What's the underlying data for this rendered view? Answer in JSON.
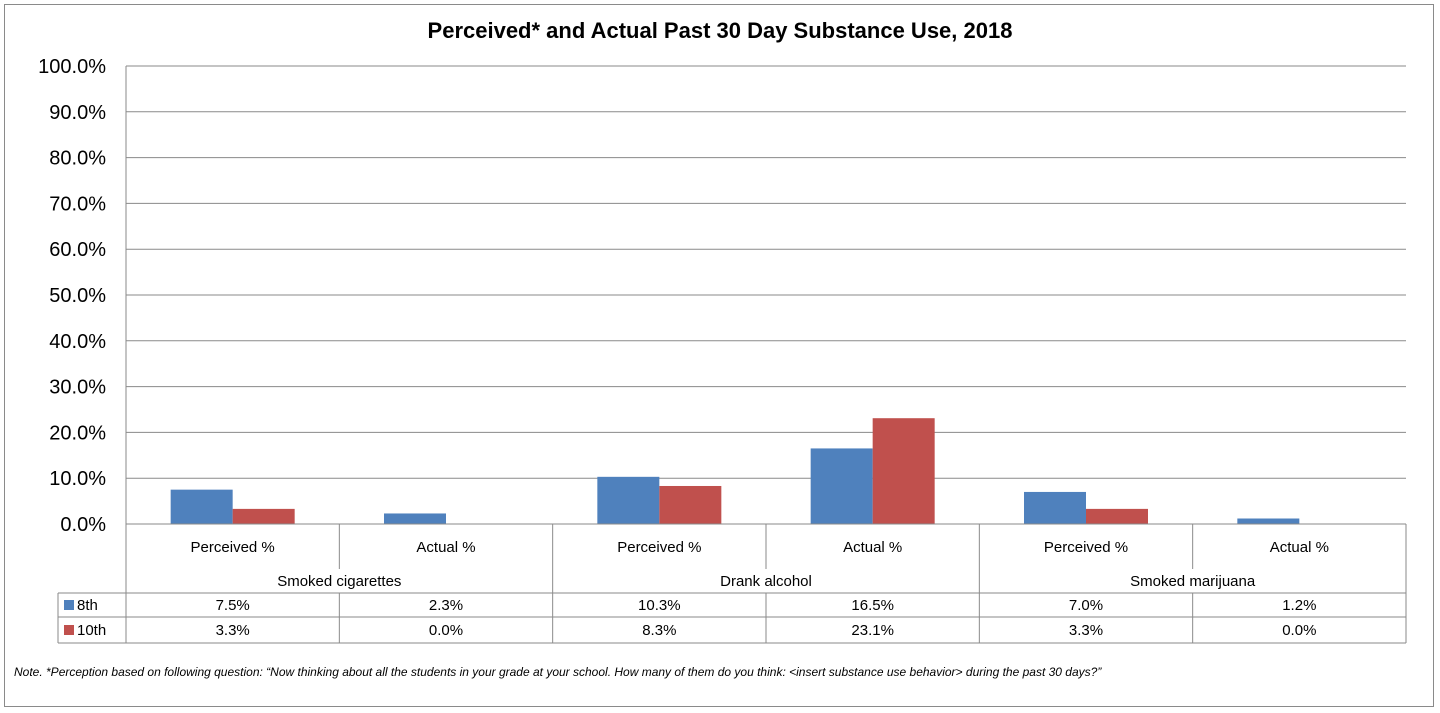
{
  "chart_data": {
    "type": "bar",
    "title": "Perceived* and Actual Past 30 Day Substance Use, 2018",
    "categories": [
      "Perceived %",
      "Actual %",
      "Perceived %",
      "Actual %",
      "Perceived %",
      "Actual %"
    ],
    "groups": [
      {
        "label": "Smoked cigarettes",
        "span": 2
      },
      {
        "label": "Drank alcohol",
        "span": 2
      },
      {
        "label": "Smoked marijuana",
        "span": 2
      }
    ],
    "series": [
      {
        "name": "8th",
        "color": "#4f81bd",
        "values": [
          7.5,
          2.3,
          10.3,
          16.5,
          7.0,
          1.2
        ],
        "labels": [
          "7.5%",
          "2.3%",
          "10.3%",
          "16.5%",
          "7.0%",
          "1.2%"
        ]
      },
      {
        "name": "10th",
        "color": "#c0504d",
        "values": [
          3.3,
          0.0,
          8.3,
          23.1,
          3.3,
          0.0
        ],
        "labels": [
          "3.3%",
          "0.0%",
          "8.3%",
          "23.1%",
          "3.3%",
          "0.0%"
        ]
      }
    ],
    "ylim": [
      0,
      100
    ],
    "yticks": [
      "0.0%",
      "10.0%",
      "20.0%",
      "30.0%",
      "40.0%",
      "50.0%",
      "60.0%",
      "70.0%",
      "80.0%",
      "90.0%",
      "100.0%"
    ],
    "grid": true,
    "legend": "data-table"
  },
  "note": "Note. *Perception based on following question: “Now thinking about all the students in your grade at your school. How many of them do you think: <insert substance use behavior> during the past 30 days?”"
}
